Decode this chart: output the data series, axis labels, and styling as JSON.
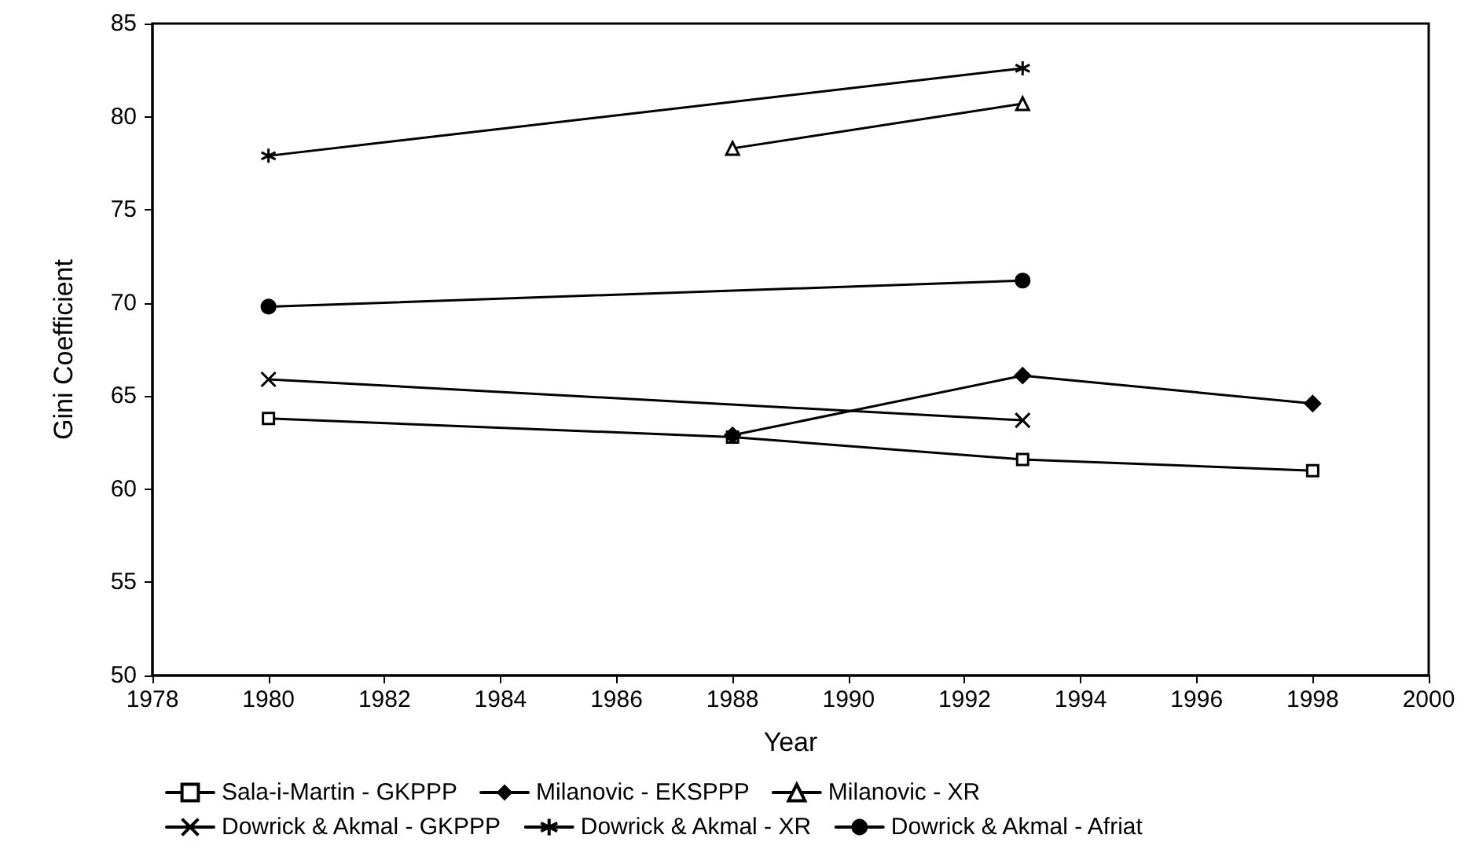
{
  "chart_data": {
    "type": "line",
    "xlabel": "Year",
    "ylabel": "Gini Coefficient",
    "xlim": [
      1978,
      2000
    ],
    "xticks": [
      1978,
      1980,
      1982,
      1984,
      1986,
      1988,
      1990,
      1992,
      1994,
      1996,
      1998,
      2000
    ],
    "ylim": [
      50,
      85
    ],
    "yticks": [
      50,
      55,
      60,
      65,
      70,
      75,
      80,
      85
    ],
    "grid": false,
    "legend": "bottom",
    "series": [
      {
        "name": "Sala-i-Martin - GKPPP",
        "color": "#000000",
        "marker": "square",
        "x": [
          1980,
          1988,
          1993,
          1998
        ],
        "values": [
          63.8,
          62.8,
          61.6,
          61.0
        ]
      },
      {
        "name": "Milanovic - EKSPPP",
        "color": "#000000",
        "marker": "diamond",
        "x": [
          1988,
          1993,
          1998
        ],
        "values": [
          62.9,
          66.1,
          64.6
        ]
      },
      {
        "name": "Milanovic - XR",
        "color": "#000000",
        "marker": "triangle",
        "x": [
          1988,
          1993
        ],
        "values": [
          78.3,
          80.7
        ]
      },
      {
        "name": "Dowrick & Akmal - GKPPP",
        "color": "#000000",
        "marker": "cross",
        "x": [
          1980,
          1993
        ],
        "values": [
          65.9,
          63.7
        ]
      },
      {
        "name": "Dowrick & Akmal - XR",
        "color": "#000000",
        "marker": "star",
        "x": [
          1980,
          1993
        ],
        "values": [
          77.9,
          82.6
        ]
      },
      {
        "name": "Dowrick & Akmal - Afriat",
        "color": "#000000",
        "marker": "circle",
        "x": [
          1980,
          1993
        ],
        "values": [
          69.8,
          71.2
        ]
      }
    ]
  }
}
